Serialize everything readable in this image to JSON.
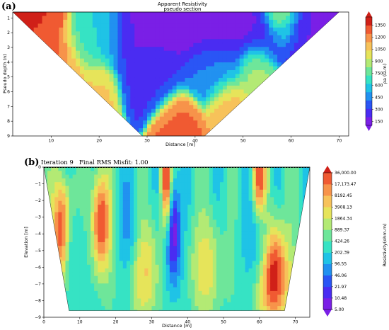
{
  "chart_data": [
    {
      "type": "heatmap",
      "panel_label": "(a)",
      "title": "Apparent Resistivity",
      "subtitle": "pseudo section",
      "xlabel": "Distance [m]",
      "ylabel": "Pseudo depth (n)",
      "xlim": [
        2,
        72
      ],
      "ylim": [
        9,
        0.6
      ],
      "x_ticks": [
        "10",
        "20",
        "30",
        "40",
        "50",
        "60",
        "70"
      ],
      "x_tick_values": [
        10,
        20,
        30,
        40,
        50,
        60,
        70
      ],
      "y_ticks": [
        "1",
        "2",
        "3",
        "4",
        "5",
        "6",
        "7",
        "8",
        "9"
      ],
      "y_tick_values": [
        1,
        2,
        3,
        4,
        5,
        6,
        7,
        8,
        9
      ],
      "colorbar": {
        "label": "ρa (Ω.m)",
        "ticks": [
          "150",
          "300",
          "450",
          "600",
          "750",
          "900",
          "1050",
          "1200",
          "1350"
        ],
        "tick_values": [
          150,
          300,
          450,
          600,
          750,
          900,
          1050,
          1200,
          1350
        ],
        "range": [
          100,
          1450
        ]
      },
      "section_shape": {
        "top_left_x": 2,
        "top_right_x": 70,
        "bottom_left_x": 29,
        "bottom_right_x": 42,
        "top_n": 0.6,
        "bottom_n": 9
      },
      "field_features": [
        {
          "x": 5,
          "n": 2.0,
          "value": 1350,
          "spread": 4
        },
        {
          "x": 11,
          "n": 4.0,
          "value": 1250,
          "spread": 3
        },
        {
          "x": 14,
          "n": 5.0,
          "value": 1150,
          "spread": 2
        },
        {
          "x": 19,
          "n": 6.0,
          "value": 1050,
          "spread": 2
        },
        {
          "x": 17,
          "n": 3.0,
          "value": 650,
          "spread": 2
        },
        {
          "x": 21,
          "n": 2.0,
          "value": 650,
          "spread": 3
        },
        {
          "x": 28,
          "n": 2.0,
          "value": 150,
          "spread": 4
        },
        {
          "x": 34,
          "n": 1.5,
          "value": 160,
          "spread": 4
        },
        {
          "x": 42,
          "n": 1.5,
          "value": 160,
          "spread": 5
        },
        {
          "x": 55,
          "n": 2.0,
          "value": 170,
          "spread": 5
        },
        {
          "x": 64,
          "n": 1.2,
          "value": 200,
          "spread": 4
        },
        {
          "x": 31,
          "n": 4.5,
          "value": 300,
          "spread": 3
        },
        {
          "x": 44,
          "n": 4.5,
          "value": 420,
          "spread": 3
        },
        {
          "x": 47,
          "n": 7.0,
          "value": 1100,
          "spread": 2
        },
        {
          "x": 37,
          "n": 8.5,
          "value": 1250,
          "spread": 2
        },
        {
          "x": 53,
          "n": 4.5,
          "value": 880,
          "spread": 2
        },
        {
          "x": 58,
          "n": 0.9,
          "value": 1300,
          "spread": 2
        }
      ]
    },
    {
      "type": "heatmap",
      "panel_label": "(b)",
      "iteration_label": "Iteration 9",
      "misfit_label": "Final RMS Misfit: 1.00",
      "xlabel": "Distance [m]",
      "ylabel": "Elevation [m]",
      "xlim": [
        0,
        74
      ],
      "ylim": [
        -9,
        0
      ],
      "x_ticks": [
        "0",
        "10",
        "20",
        "30",
        "40",
        "50",
        "60",
        "70"
      ],
      "x_tick_values": [
        0,
        10,
        20,
        30,
        40,
        50,
        60,
        70
      ],
      "y_ticks": [
        "0",
        "−1",
        "−2",
        "−3",
        "−4",
        "−5",
        "−6",
        "−7",
        "−8",
        "−9"
      ],
      "y_tick_values": [
        0,
        -1,
        -2,
        -3,
        -4,
        -5,
        -6,
        -7,
        -8,
        -9
      ],
      "colorbar": {
        "label": "Resistivity(ohm.m)",
        "ticks": [
          "5.00",
          "10.48",
          "21.97",
          "46.06",
          "96.55",
          "202.39",
          "424.26",
          "889.37",
          "1864.34",
          "3908.13",
          "8192.45",
          "17,173.47",
          "36,000.00"
        ],
        "tick_values": [
          5.0,
          10.48,
          21.97,
          46.06,
          96.55,
          202.39,
          424.26,
          889.37,
          1864.34,
          3908.13,
          8192.45,
          17173.47,
          36000.0
        ]
      },
      "section_shape": {
        "top_left_x": 0,
        "top_right_x": 74,
        "bottom_left_x": 7,
        "bottom_right_x": 67,
        "bottom_elevation": -8.6
      },
      "field_features": [
        {
          "x": 5,
          "z": -3.8,
          "value": 20000,
          "spread": 2
        },
        {
          "x": 16,
          "z": -3.3,
          "value": 20000,
          "spread": 2
        },
        {
          "x": 28,
          "z": -6.3,
          "value": 2500,
          "spread": 3
        },
        {
          "x": 45,
          "z": -6.0,
          "value": 2000,
          "spread": 3
        },
        {
          "x": 64,
          "z": -6.5,
          "value": 30000,
          "spread": 3
        },
        {
          "x": 36,
          "z": -4.0,
          "value": 6,
          "spread": 1.5
        },
        {
          "x": 59,
          "z": -3.0,
          "value": 30,
          "spread": 2
        },
        {
          "x": 23,
          "z": -3.0,
          "value": 60,
          "spread": 2
        },
        {
          "x": 9,
          "z": -5.5,
          "value": 150,
          "spread": 2
        },
        {
          "x": 34,
          "z": -0.3,
          "value": 30000,
          "spread": 1
        },
        {
          "x": 60,
          "z": -0.3,
          "value": 20000,
          "spread": 1.5
        }
      ]
    }
  ]
}
